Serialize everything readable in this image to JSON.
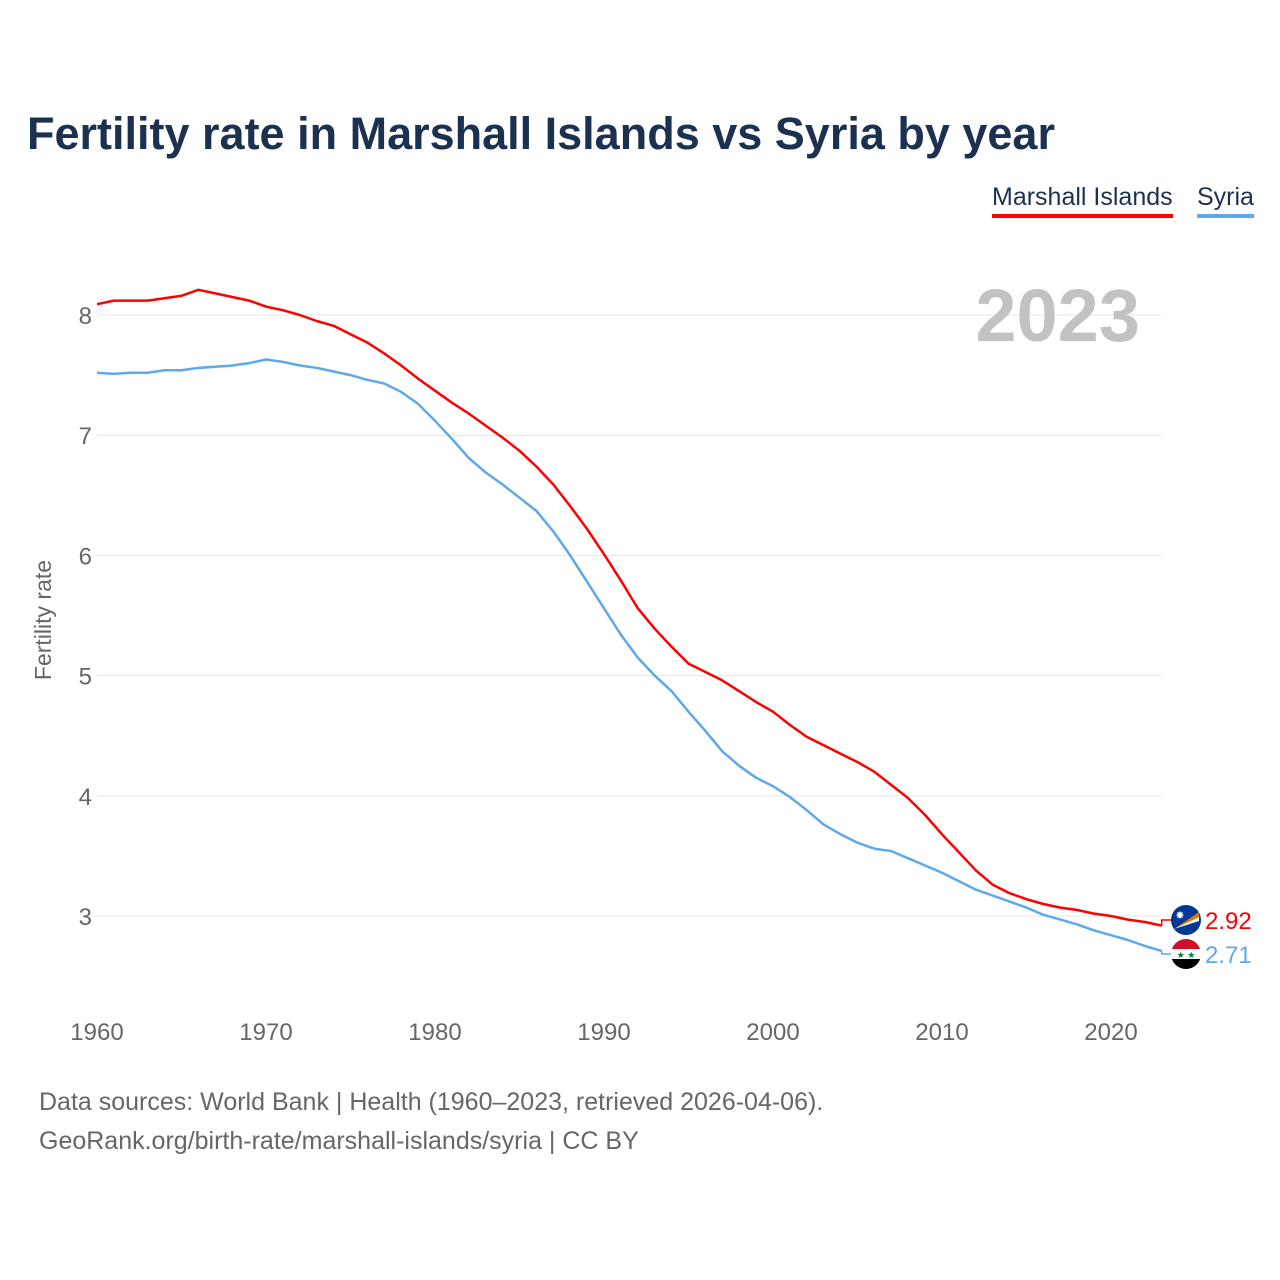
{
  "chart_data": {
    "type": "line",
    "title": "Fertility rate in Marshall Islands vs Syria by year",
    "xlabel": "",
    "ylabel": "Fertility rate",
    "year_label": "2023",
    "xlim": [
      1960,
      2023
    ],
    "ylim": [
      2.5,
      8.4
    ],
    "xticks": [
      1960,
      1970,
      1980,
      1990,
      2000,
      2010,
      2020
    ],
    "yticks": [
      3,
      4,
      5,
      6,
      7,
      8
    ],
    "grid": true,
    "legend_position": "top-right",
    "x": [
      1960,
      1961,
      1962,
      1963,
      1964,
      1965,
      1966,
      1967,
      1968,
      1969,
      1970,
      1971,
      1972,
      1973,
      1974,
      1975,
      1976,
      1977,
      1978,
      1979,
      1980,
      1981,
      1982,
      1983,
      1984,
      1985,
      1986,
      1987,
      1988,
      1989,
      1990,
      1991,
      1992,
      1993,
      1994,
      1995,
      1996,
      1997,
      1998,
      1999,
      2000,
      2001,
      2002,
      2003,
      2004,
      2005,
      2006,
      2007,
      2008,
      2009,
      2010,
      2011,
      2012,
      2013,
      2014,
      2015,
      2016,
      2017,
      2018,
      2019,
      2020,
      2021,
      2022,
      2023
    ],
    "series": [
      {
        "name": "Marshall Islands",
        "color": "#ff0000",
        "end_label": "2.92",
        "flag": "marshall-islands-flag",
        "values": [
          8.09,
          8.12,
          8.12,
          8.12,
          8.14,
          8.16,
          8.21,
          8.18,
          8.15,
          8.12,
          8.07,
          8.04,
          8.0,
          7.95,
          7.91,
          7.84,
          7.77,
          7.68,
          7.58,
          7.47,
          7.37,
          7.27,
          7.18,
          7.08,
          6.98,
          6.87,
          6.74,
          6.59,
          6.41,
          6.22,
          6.01,
          5.79,
          5.56,
          5.39,
          5.24,
          5.1,
          5.03,
          4.96,
          4.87,
          4.78,
          4.7,
          4.59,
          4.49,
          4.42,
          4.35,
          4.28,
          4.2,
          4.09,
          3.98,
          3.84,
          3.68,
          3.53,
          3.38,
          3.26,
          3.19,
          3.14,
          3.1,
          3.07,
          3.05,
          3.02,
          3.0,
          2.97,
          2.95,
          2.92
        ]
      },
      {
        "name": "Syria",
        "color": "#5fa8ea",
        "end_label": "2.71",
        "flag": "syria-flag",
        "values": [
          7.52,
          7.51,
          7.52,
          7.52,
          7.54,
          7.54,
          7.56,
          7.57,
          7.58,
          7.6,
          7.63,
          7.61,
          7.58,
          7.56,
          7.53,
          7.5,
          7.46,
          7.43,
          7.36,
          7.26,
          7.12,
          6.97,
          6.81,
          6.69,
          6.59,
          6.48,
          6.37,
          6.2,
          6.0,
          5.78,
          5.56,
          5.34,
          5.15,
          5.0,
          4.87,
          4.7,
          4.54,
          4.37,
          4.25,
          4.15,
          4.08,
          3.99,
          3.88,
          3.76,
          3.68,
          3.61,
          3.56,
          3.54,
          3.48,
          3.42,
          3.36,
          3.29,
          3.22,
          3.17,
          3.12,
          3.07,
          3.01,
          2.97,
          2.93,
          2.88,
          2.84,
          2.8,
          2.75,
          2.71
        ]
      }
    ]
  },
  "footer": {
    "sources": "Data sources: World Bank | Health (1960–2023, retrieved 2026-04-06).",
    "link": "GeoRank.org/birth-rate/marshall-islands/syria | CC BY"
  }
}
